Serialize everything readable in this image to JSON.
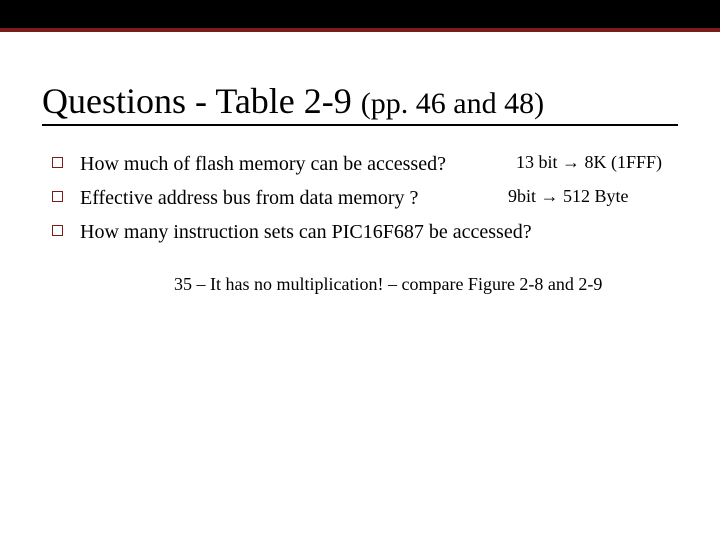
{
  "colors": {
    "bar_bg": "#000000",
    "bar_accent": "#7a1c1c",
    "square_border": "#7a1c1c",
    "text": "#000000",
    "background": "#ffffff"
  },
  "title_main": "Questions  - Table 2-9 ",
  "title_sub": "(pp. 46 and 48)",
  "items": [
    {
      "question": "How much of flash memory can be accessed?",
      "answer": "13 bit → 8K (1FFF)"
    },
    {
      "question": "Effective address bus from data memory ?",
      "answer": "9bit → 512 Byte"
    },
    {
      "question": "How many instruction sets can PIC16F687 be accessed?",
      "answer": ""
    }
  ],
  "footnote": "35 – It has no multiplication! – compare Figure 2-8 and 2-9"
}
